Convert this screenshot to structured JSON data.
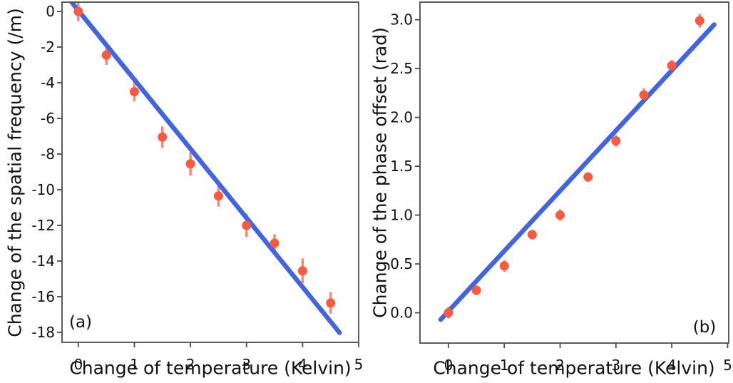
{
  "figure": {
    "background": "#ffffff",
    "text_color": "#111111",
    "spine_color": "#4a4a4a"
  },
  "chart_data": [
    {
      "type": "scatter",
      "panel_label": "(a)",
      "xlabel": "Change of temperature (Kelvin)",
      "ylabel": "Change of the spatial frequency (/m)",
      "x": [
        0,
        0.5,
        1,
        1.5,
        2,
        2.5,
        3,
        3.5,
        4,
        4.5
      ],
      "y": [
        0.0,
        -2.45,
        -4.5,
        -7.05,
        -8.55,
        -10.35,
        -12.0,
        -13.0,
        -14.55,
        -16.35
      ],
      "yerr": [
        0.55,
        0.55,
        0.55,
        0.6,
        0.65,
        0.6,
        0.65,
        0.5,
        0.7,
        0.6
      ],
      "fit_line": {
        "x1": -0.12,
        "y1": 0.52,
        "x2": 4.66,
        "y2": -18.02,
        "slope_per_kelvin": -3.87
      },
      "xlim": [
        -0.29,
        5.0
      ],
      "ylim": [
        -18.56,
        0.52
      ],
      "xticks": {
        "values": [
          0,
          1,
          2,
          3,
          4,
          5
        ],
        "labels": [
          "0",
          "1",
          "2",
          "3",
          "4",
          "5"
        ]
      },
      "yticks": {
        "values": [
          0,
          -2,
          -4,
          -6,
          -8,
          -10,
          -12,
          -14,
          -16,
          -18
        ],
        "labels": [
          "0",
          "-2",
          "-4",
          "-6",
          "-8",
          "-10",
          "-12",
          "-14",
          "-16",
          "-18"
        ]
      },
      "grid": false,
      "legend": null,
      "colors": {
        "marker": "#f65a41",
        "error_bar": "#f88a7a",
        "fit_line": "#4265de"
      }
    },
    {
      "type": "scatter",
      "panel_label": "(b)",
      "xlabel": "Change of temperature (Kelvin)",
      "ylabel": "Change of the phase offset (rad)",
      "x": [
        0,
        0.5,
        1,
        1.5,
        2,
        2.5,
        3,
        3.5,
        4,
        4.5
      ],
      "y": [
        0.0,
        0.23,
        0.48,
        0.8,
        1.0,
        1.39,
        1.76,
        2.23,
        2.53,
        2.99
      ],
      "yerr": [
        0.06,
        0.05,
        0.06,
        0.05,
        0.06,
        0.05,
        0.06,
        0.07,
        0.06,
        0.07
      ],
      "fit_line": {
        "x1": -0.14,
        "y1": -0.07,
        "x2": 4.76,
        "y2": 2.95,
        "slope_per_kelvin": 0.62
      },
      "xlim": [
        -0.51,
        5.02
      ],
      "ylim": [
        -0.31,
        3.18
      ],
      "xticks": {
        "values": [
          0,
          1,
          2,
          3,
          4,
          5
        ],
        "labels": [
          "0",
          "1",
          "2",
          "3",
          "4",
          "5"
        ]
      },
      "yticks": {
        "values": [
          0.0,
          0.5,
          1.0,
          1.5,
          2.0,
          2.5,
          3.0
        ],
        "labels": [
          "0.0",
          "0.5",
          "1.0",
          "1.5",
          "2.0",
          "2.5",
          "3.0"
        ]
      },
      "grid": false,
      "legend": null,
      "colors": {
        "marker": "#f65a41",
        "error_bar": "#f88a7a",
        "fit_line": "#4265de"
      }
    }
  ]
}
